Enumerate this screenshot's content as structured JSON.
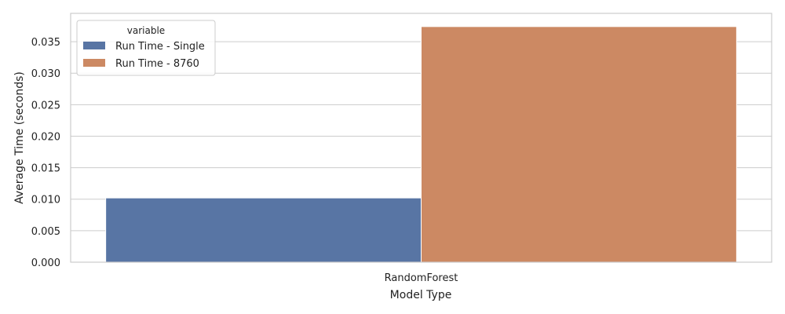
{
  "chart_data": {
    "type": "bar",
    "categories": [
      "RandomForest"
    ],
    "series": [
      {
        "name": "Run Time - Single",
        "values": [
          0.0102
        ],
        "color": "#5875a4"
      },
      {
        "name": "Run Time - 8760",
        "values": [
          0.0374
        ],
        "color": "#cc8963"
      }
    ],
    "xlabel": "Model Type",
    "ylabel": "Average Time (seconds)",
    "ylim": [
      0,
      0.0395
    ],
    "yticks": [
      "0.000",
      "0.005",
      "0.010",
      "0.015",
      "0.020",
      "0.025",
      "0.030",
      "0.035"
    ],
    "grid": true,
    "legend": {
      "title": "variable",
      "placement": "top-left"
    }
  }
}
